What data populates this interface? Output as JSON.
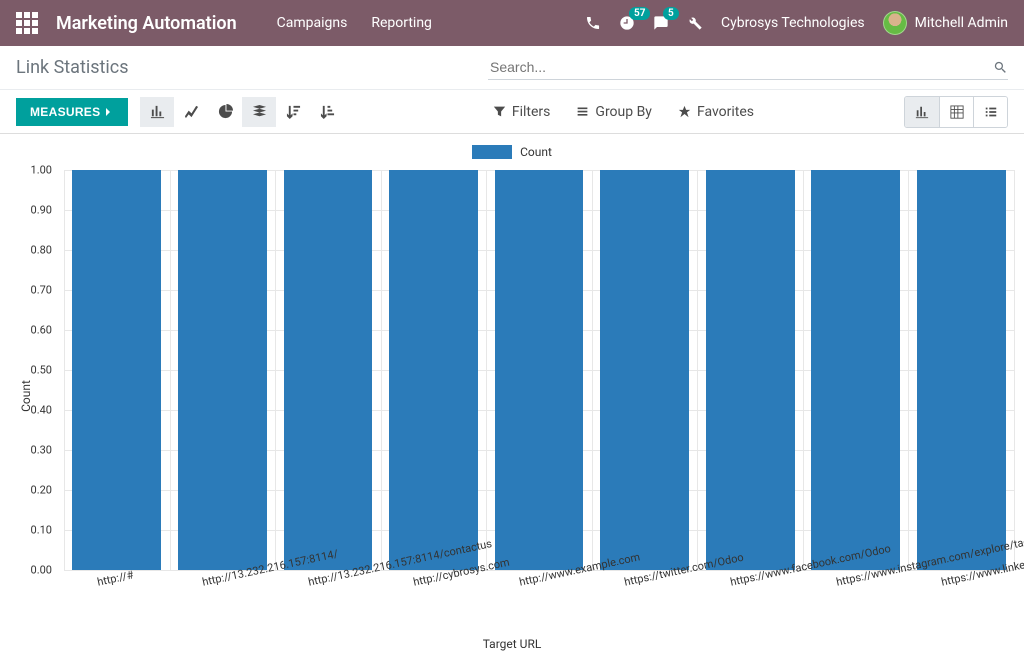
{
  "navbar": {
    "brand": "Marketing Automation",
    "menus": [
      "Campaigns",
      "Reporting"
    ],
    "badge_timer": "57",
    "badge_chat": "5",
    "company": "Cybrosys Technologies",
    "user": "Mitchell Admin"
  },
  "breadcrumb": "Link Statistics",
  "search_placeholder": "Search...",
  "toolbar": {
    "measures_label": "MEASURES",
    "filters_label": "Filters",
    "groupby_label": "Group By",
    "favorites_label": "Favorites"
  },
  "chart": {
    "type": "bar",
    "legend_label": "Count",
    "ylabel": "Count",
    "xlabel": "Target URL",
    "ylim": [
      0,
      1
    ],
    "ytick_step": 0.1,
    "yticks": [
      "0.00",
      "0.10",
      "0.20",
      "0.30",
      "0.40",
      "0.50",
      "0.60",
      "0.70",
      "0.80",
      "0.90",
      "1.00"
    ],
    "bar_color": "#2b7bb9",
    "grid_color": "#e7e7e7",
    "background_color": "#ffffff",
    "categories": [
      "http://#",
      "http://13.232.216.157:8114/",
      "http://13.232.216.157:8114/contactus",
      "http://cybrosys.com",
      "http://www.example.com",
      "https://twitter.com/Odoo",
      "https://www.facebook.com/Odoo",
      "https://www.instagram.com/explore/tags/odoo/",
      "https://www.linkedin.com/company/odoo"
    ],
    "values": [
      1,
      1,
      1,
      1,
      1,
      1,
      1,
      1,
      1
    ]
  },
  "colors": {
    "navbar_bg": "#7c5b68",
    "accent": "#00a09d"
  }
}
